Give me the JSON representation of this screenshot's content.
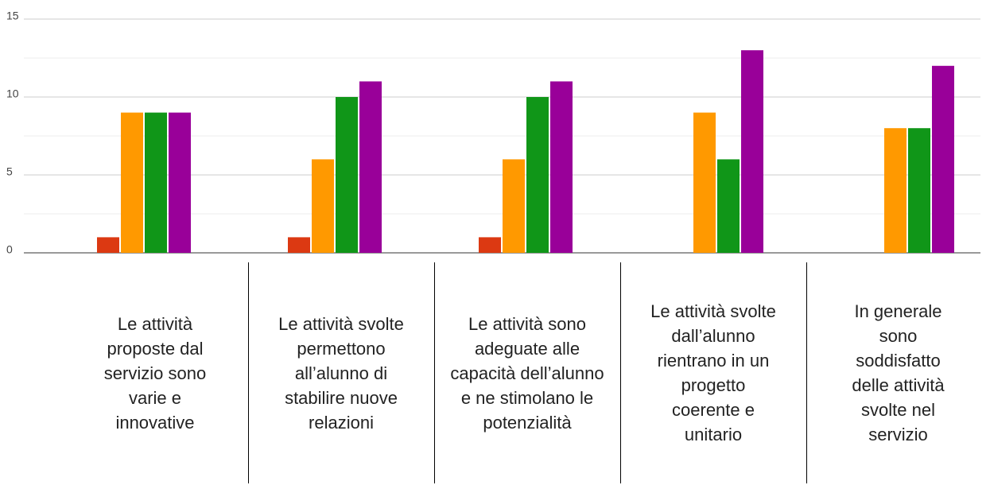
{
  "chart_data": {
    "type": "bar",
    "categories": [
      "Le attività proposte dal servizio sono varie e innovative",
      "Le attività svolte permettono all’alunno di stabilire nuove relazioni",
      "Le attività sono adeguate alle capacità dell’alunno e ne stimolano le potenzialità",
      "Le attività svolte dall’alunno rientrano in un progetto coerente e unitario",
      "In generale sono soddisfatto delle attività svolte nel servizio"
    ],
    "series": [
      {
        "color": "#dc3912",
        "values": [
          1,
          1,
          1,
          0,
          0
        ]
      },
      {
        "color": "#ff9900",
        "values": [
          9,
          6,
          6,
          9,
          8
        ]
      },
      {
        "color": "#109618",
        "values": [
          9,
          10,
          10,
          6,
          8
        ]
      },
      {
        "color": "#990099",
        "values": [
          9,
          11,
          11,
          13,
          12
        ]
      }
    ],
    "ylim": [
      0,
      15
    ],
    "yticks": [
      0,
      5,
      10,
      15
    ],
    "grid": true
  }
}
